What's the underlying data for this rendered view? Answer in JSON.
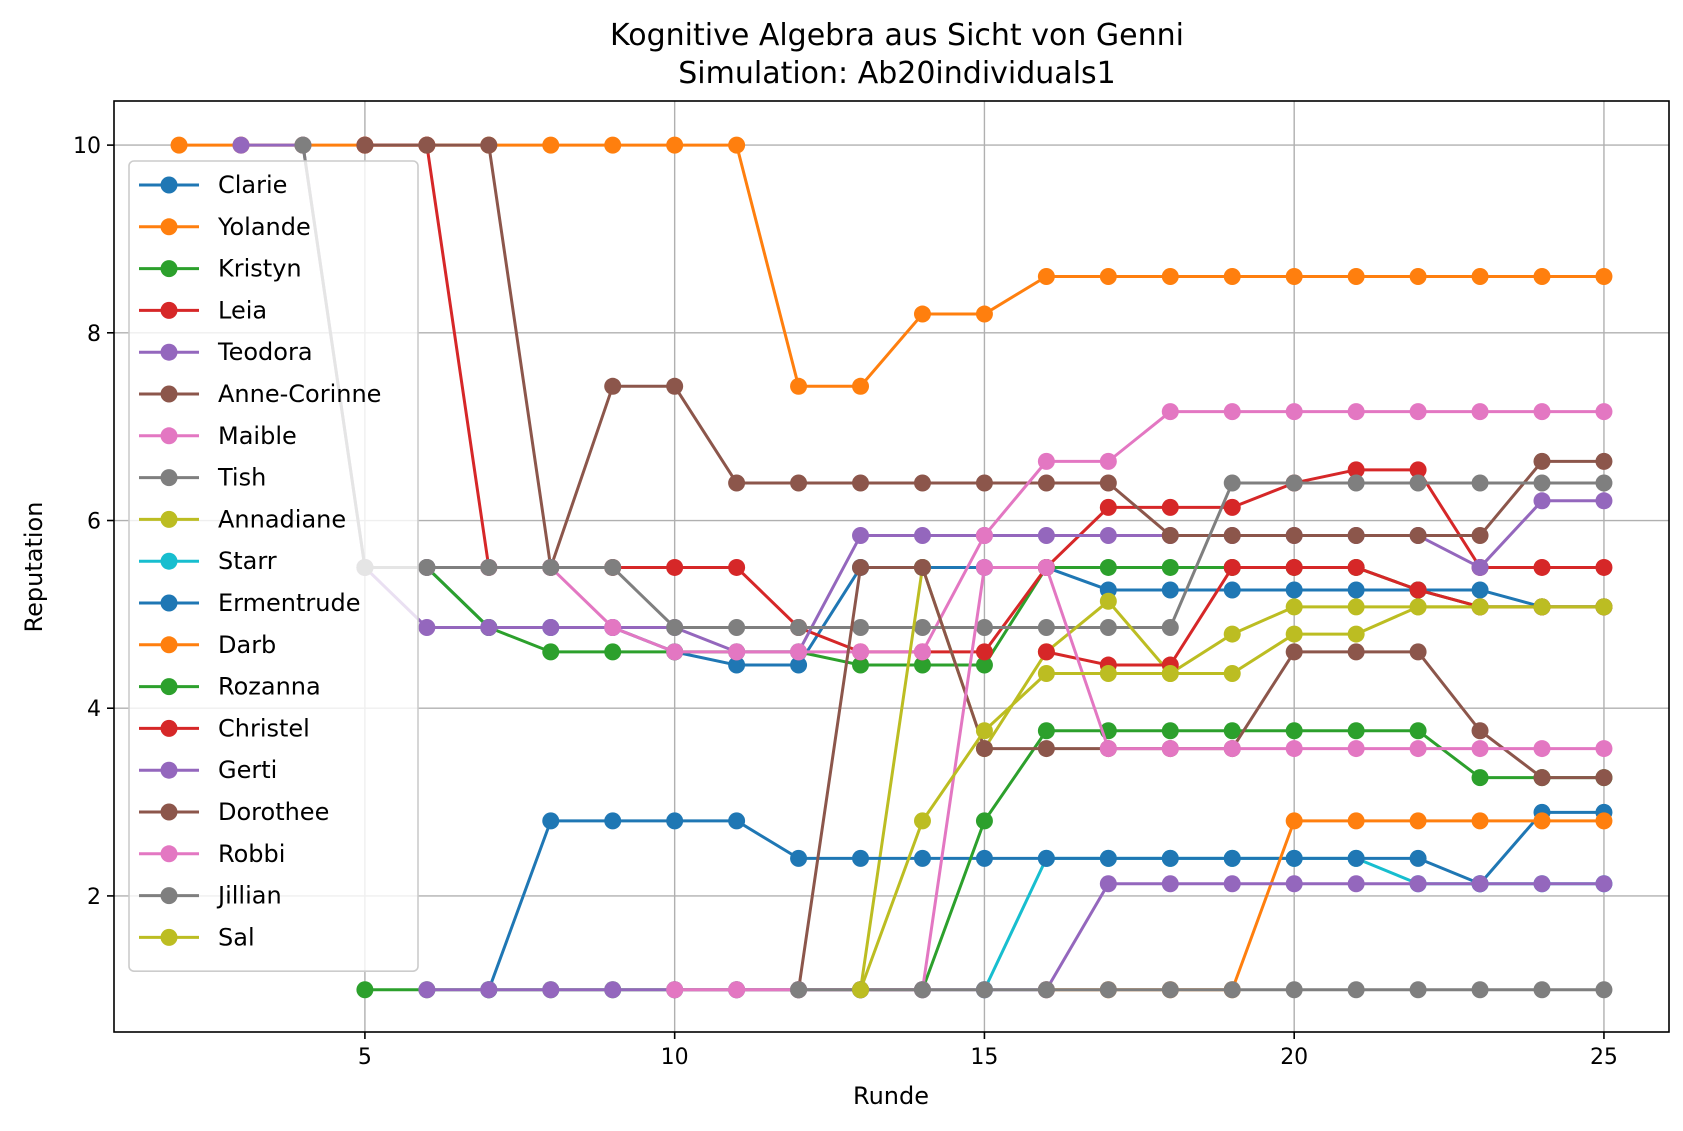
{
  "chart_data": {
    "type": "line",
    "title": "Kognitive Algebra aus Sicht von Genni",
    "subtitle": "Simulation: Ab20individuals1",
    "xlabel": "Runde",
    "ylabel": "Reputation",
    "xlim": [
      0.95,
      26.05
    ],
    "ylim": [
      0.55,
      10.47
    ],
    "xticks": [
      5,
      10,
      15,
      20,
      25
    ],
    "yticks": [
      2,
      4,
      6,
      8,
      10
    ],
    "grid": true,
    "legend_position": "upper-left",
    "series": [
      {
        "name": "Clarie",
        "color": "#1f77b4",
        "x": [
          5,
          6,
          7,
          8,
          9,
          10,
          11,
          12,
          13,
          14,
          15,
          16,
          17,
          18,
          19,
          20,
          21,
          22,
          23,
          24,
          25
        ],
        "y": [
          5.5,
          5.5,
          4.86,
          4.86,
          4.86,
          4.6,
          4.46,
          4.46,
          5.5,
          5.5,
          5.5,
          5.5,
          5.26,
          5.26,
          5.26,
          5.26,
          5.26,
          5.26,
          5.26,
          5.08,
          5.08
        ]
      },
      {
        "name": "Yolande",
        "color": "#ff7f0e",
        "x": [
          2,
          3,
          4,
          5,
          6,
          7,
          8,
          9,
          10,
          11,
          12,
          13,
          14,
          15,
          16,
          17,
          18,
          19,
          20,
          21,
          22,
          23,
          24,
          25
        ],
        "y": [
          10,
          10,
          10,
          10,
          10,
          10,
          10,
          10,
          10,
          10,
          7.43,
          7.43,
          8.2,
          8.2,
          8.6,
          8.6,
          8.6,
          8.6,
          8.6,
          8.6,
          8.6,
          8.6,
          8.6,
          8.6
        ]
      },
      {
        "name": "Kristyn",
        "color": "#2ca02c",
        "x": [
          5,
          6,
          7,
          8,
          9,
          10,
          11,
          12,
          13,
          14,
          15,
          16,
          17,
          18,
          19,
          20,
          21,
          22,
          23,
          24,
          25
        ],
        "y": [
          5.5,
          5.5,
          4.86,
          4.6,
          4.6,
          4.6,
          4.6,
          4.6,
          4.46,
          4.46,
          4.46,
          5.5,
          5.5,
          5.5,
          5.5,
          5.5,
          5.5,
          5.26,
          5.08,
          5.08,
          5.08
        ]
      },
      {
        "name": "Leia",
        "color": "#d62728",
        "x": [
          5,
          6,
          7,
          8,
          9,
          10,
          11,
          12,
          13,
          14,
          15,
          16,
          17,
          18,
          19,
          20,
          21,
          22,
          23,
          24,
          25
        ],
        "y": [
          10,
          10,
          5.5,
          5.5,
          5.5,
          5.5,
          5.5,
          4.86,
          4.6,
          4.6,
          4.6,
          5.5,
          6.14,
          6.14,
          6.14,
          6.4,
          6.54,
          6.54,
          5.5,
          5.5,
          5.5
        ]
      },
      {
        "name": "Teodora",
        "color": "#9467bd",
        "x": [
          3,
          4,
          5,
          6,
          7,
          8,
          9,
          10,
          11,
          12,
          13,
          14,
          15,
          16,
          17,
          18,
          19,
          20,
          21,
          22,
          23,
          24,
          25
        ],
        "y": [
          10,
          10,
          5.5,
          4.86,
          4.86,
          4.86,
          4.86,
          4.86,
          4.6,
          4.6,
          5.84,
          5.84,
          5.84,
          5.84,
          5.84,
          5.84,
          5.84,
          5.84,
          5.84,
          5.84,
          5.5,
          6.21,
          6.21
        ]
      },
      {
        "name": "Anne-Corinne",
        "color": "#8c564b",
        "x": [
          5,
          6,
          7,
          8,
          9,
          10,
          11,
          12,
          13,
          14,
          15,
          16,
          17,
          18,
          19,
          20,
          21,
          22,
          23,
          24,
          25
        ],
        "y": [
          10,
          10,
          10,
          5.5,
          7.43,
          7.43,
          6.4,
          6.4,
          6.4,
          6.4,
          6.4,
          6.4,
          6.4,
          5.84,
          5.84,
          5.84,
          5.84,
          5.84,
          5.84,
          6.63,
          6.63
        ]
      },
      {
        "name": "Maible",
        "color": "#e377c2",
        "x": [
          5,
          6,
          7,
          8,
          9,
          10,
          11,
          12,
          13,
          14,
          15,
          16,
          17,
          18,
          19,
          20,
          21,
          22,
          23,
          24,
          25
        ],
        "y": [
          5.5,
          5.5,
          5.5,
          5.5,
          4.86,
          4.6,
          4.6,
          4.6,
          4.6,
          4.6,
          5.84,
          6.63,
          6.63,
          7.16,
          7.16,
          7.16,
          7.16,
          7.16,
          7.16,
          7.16,
          7.16
        ]
      },
      {
        "name": "Tish",
        "color": "#7f7f7f",
        "x": [
          4,
          5,
          6,
          7,
          8,
          9,
          10,
          11,
          12,
          13,
          14,
          15,
          16,
          17,
          18,
          19,
          20,
          21,
          22,
          23,
          24,
          25
        ],
        "y": [
          10,
          5.5,
          5.5,
          5.5,
          5.5,
          5.5,
          4.86,
          4.86,
          4.86,
          4.86,
          4.86,
          4.86,
          4.86,
          4.86,
          4.86,
          6.4,
          6.4,
          6.4,
          6.4,
          6.4,
          6.4,
          6.4
        ]
      },
      {
        "name": "Annadiane",
        "color": "#bcbd22",
        "x": [
          13,
          14,
          15,
          16,
          17,
          18,
          19,
          20,
          21,
          22,
          23,
          24,
          25
        ],
        "y": [
          1,
          5.5,
          3.57,
          4.6,
          5.14,
          4.37,
          4.79,
          5.08,
          5.08,
          5.08,
          5.08,
          5.08,
          5.08
        ]
      },
      {
        "name": "Starr",
        "color": "#17becf",
        "x": [
          15,
          16,
          17,
          18,
          19,
          20,
          21,
          22,
          23,
          24,
          25
        ],
        "y": [
          1,
          2.4,
          2.4,
          2.4,
          2.4,
          2.4,
          2.4,
          2.13,
          2.13,
          2.13,
          2.13
        ]
      },
      {
        "name": "Ermentrude",
        "color": "#1f77b4",
        "x": [
          7,
          8,
          9,
          10,
          11,
          12,
          13,
          14,
          15,
          16,
          17,
          18,
          19,
          20,
          21,
          22,
          23,
          24,
          25
        ],
        "y": [
          1,
          2.8,
          2.8,
          2.8,
          2.8,
          2.4,
          2.4,
          2.4,
          2.4,
          2.4,
          2.4,
          2.4,
          2.4,
          2.4,
          2.4,
          2.4,
          2.13,
          2.89,
          2.89
        ]
      },
      {
        "name": "Darb",
        "color": "#ff7f0e",
        "x": [
          16,
          17,
          18,
          19,
          20,
          21,
          22,
          23,
          24,
          25
        ],
        "y": [
          1,
          1,
          1,
          1,
          2.8,
          2.8,
          2.8,
          2.8,
          2.8,
          2.8
        ]
      },
      {
        "name": "Rozanna",
        "color": "#2ca02c",
        "x": [
          5,
          6,
          7,
          8,
          9,
          10,
          11,
          12,
          13,
          14,
          15,
          16,
          17,
          18,
          19,
          20,
          21,
          22,
          23,
          24,
          25
        ],
        "y": [
          1,
          1,
          1,
          1,
          1,
          1,
          1,
          1,
          1,
          1,
          2.8,
          3.76,
          3.76,
          3.76,
          3.76,
          3.76,
          3.76,
          3.76,
          3.26,
          3.26,
          3.26
        ]
      },
      {
        "name": "Christel",
        "color": "#d62728",
        "x": [
          16,
          17,
          18,
          19,
          20,
          21,
          22,
          23,
          24,
          25
        ],
        "y": [
          4.6,
          4.46,
          4.46,
          5.5,
          5.5,
          5.5,
          5.26,
          5.08,
          5.08,
          5.08
        ]
      },
      {
        "name": "Gerti",
        "color": "#9467bd",
        "x": [
          6,
          7,
          8,
          9,
          10,
          11,
          12,
          13,
          14,
          15,
          16,
          17,
          18,
          19,
          20,
          21,
          22,
          23,
          24,
          25
        ],
        "y": [
          1,
          1,
          1,
          1,
          1,
          1,
          1,
          1,
          1,
          1,
          1,
          2.13,
          2.13,
          2.13,
          2.13,
          2.13,
          2.13,
          2.13,
          2.13,
          2.13
        ]
      },
      {
        "name": "Dorothee",
        "color": "#8c564b",
        "x": [
          12,
          13,
          14,
          15,
          16,
          17,
          18,
          19,
          20,
          21,
          22,
          23,
          24,
          25
        ],
        "y": [
          1,
          5.5,
          5.5,
          3.57,
          3.57,
          3.57,
          3.57,
          3.57,
          4.6,
          4.6,
          4.6,
          3.76,
          3.26,
          3.26
        ]
      },
      {
        "name": "Robbi",
        "color": "#e377c2",
        "x": [
          10,
          11,
          12,
          13,
          14,
          15,
          16,
          17,
          18,
          19,
          20,
          21,
          22,
          23,
          24,
          25
        ],
        "y": [
          1,
          1,
          1,
          1,
          1,
          5.5,
          5.5,
          3.57,
          3.57,
          3.57,
          3.57,
          3.57,
          3.57,
          3.57,
          3.57,
          3.57
        ]
      },
      {
        "name": "Jillian",
        "color": "#7f7f7f",
        "x": [
          12,
          13,
          14,
          15,
          16,
          17,
          18,
          19,
          20,
          21,
          22,
          23,
          24,
          25
        ],
        "y": [
          1,
          1,
          1,
          1,
          1,
          1,
          1,
          1,
          1,
          1,
          1,
          1,
          1,
          1
        ]
      },
      {
        "name": "Sal",
        "color": "#bcbd22",
        "x": [
          13,
          14,
          15,
          16,
          17,
          18,
          19,
          20,
          21,
          22,
          23,
          24,
          25
        ],
        "y": [
          1,
          2.8,
          3.76,
          4.37,
          4.37,
          4.37,
          4.37,
          4.79,
          4.79,
          5.08,
          5.08,
          5.08,
          5.08
        ]
      }
    ]
  }
}
